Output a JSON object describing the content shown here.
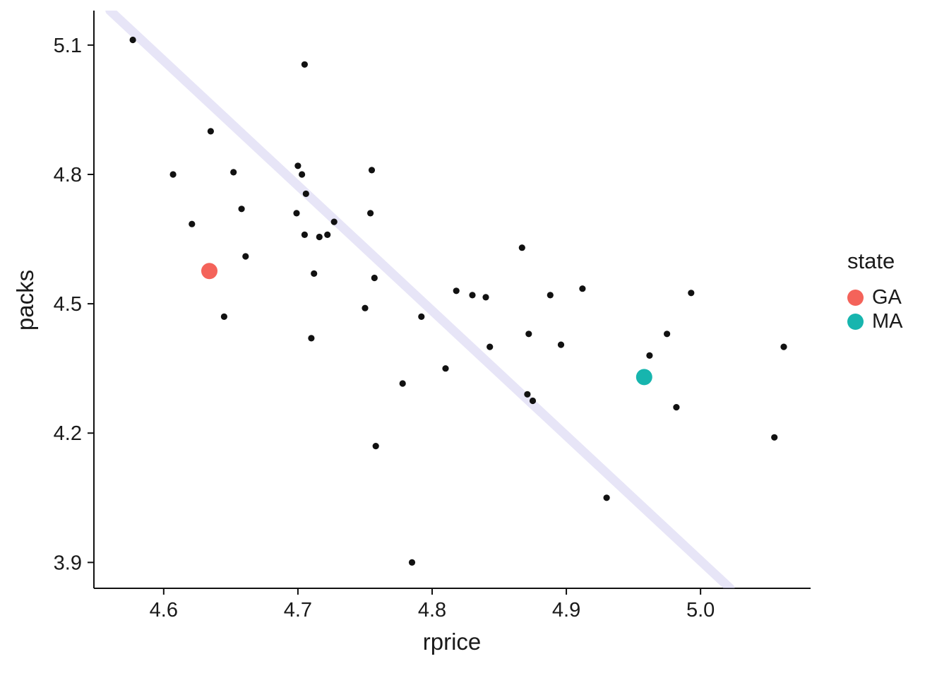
{
  "chart_data": {
    "type": "scatter",
    "title": "",
    "xlabel": "rprice",
    "ylabel": "packs",
    "xlim": [
      4.548,
      5.082
    ],
    "ylim": [
      3.84,
      5.18
    ],
    "x_ticks": [
      4.6,
      4.7,
      4.8,
      4.9,
      5.0
    ],
    "y_ticks": [
      3.9,
      4.2,
      4.5,
      4.8,
      5.1
    ],
    "grid": false,
    "legend_position": "right",
    "point_color": "#111111",
    "points": [
      [
        4.577,
        5.112
      ],
      [
        4.705,
        5.055
      ],
      [
        4.635,
        4.9
      ],
      [
        4.607,
        4.8
      ],
      [
        4.652,
        4.805
      ],
      [
        4.621,
        4.685
      ],
      [
        4.658,
        4.72
      ],
      [
        4.7,
        4.82
      ],
      [
        4.703,
        4.8
      ],
      [
        4.706,
        4.755
      ],
      [
        4.699,
        4.71
      ],
      [
        4.705,
        4.66
      ],
      [
        4.716,
        4.655
      ],
      [
        4.727,
        4.69
      ],
      [
        4.722,
        4.66
      ],
      [
        4.712,
        4.57
      ],
      [
        4.661,
        4.61
      ],
      [
        4.645,
        4.47
      ],
      [
        4.71,
        4.42
      ],
      [
        4.755,
        4.81
      ],
      [
        4.754,
        4.71
      ],
      [
        4.75,
        4.49
      ],
      [
        4.757,
        4.56
      ],
      [
        4.778,
        4.315
      ],
      [
        4.758,
        4.17
      ],
      [
        4.785,
        3.9
      ],
      [
        4.792,
        4.47
      ],
      [
        4.81,
        4.35
      ],
      [
        4.818,
        4.53
      ],
      [
        4.83,
        4.52
      ],
      [
        4.84,
        4.515
      ],
      [
        4.843,
        4.4
      ],
      [
        4.867,
        4.63
      ],
      [
        4.872,
        4.43
      ],
      [
        4.871,
        4.29
      ],
      [
        4.875,
        4.275
      ],
      [
        4.888,
        4.52
      ],
      [
        4.896,
        4.405
      ],
      [
        4.912,
        4.535
      ],
      [
        4.93,
        4.05
      ],
      [
        4.962,
        4.38
      ],
      [
        4.975,
        4.43
      ],
      [
        4.982,
        4.26
      ],
      [
        4.993,
        4.525
      ],
      [
        5.055,
        4.19
      ],
      [
        5.062,
        4.4
      ]
    ],
    "highlights": [
      {
        "state": "GA",
        "x": 4.634,
        "y": 4.576,
        "color": "#F4635A"
      },
      {
        "state": "MA",
        "x": 4.958,
        "y": 4.33,
        "color": "#17B5AE"
      }
    ],
    "trend_line": {
      "x1": 4.56,
      "y1": 5.18,
      "x2": 5.022,
      "y2": 3.84,
      "color": "#C9C6EE",
      "opacity": 0.45,
      "width": 13
    },
    "legend": {
      "title": "state",
      "entries": [
        {
          "label": "GA",
          "color": "#F4635A"
        },
        {
          "label": "MA",
          "color": "#17B5AE"
        }
      ]
    }
  }
}
